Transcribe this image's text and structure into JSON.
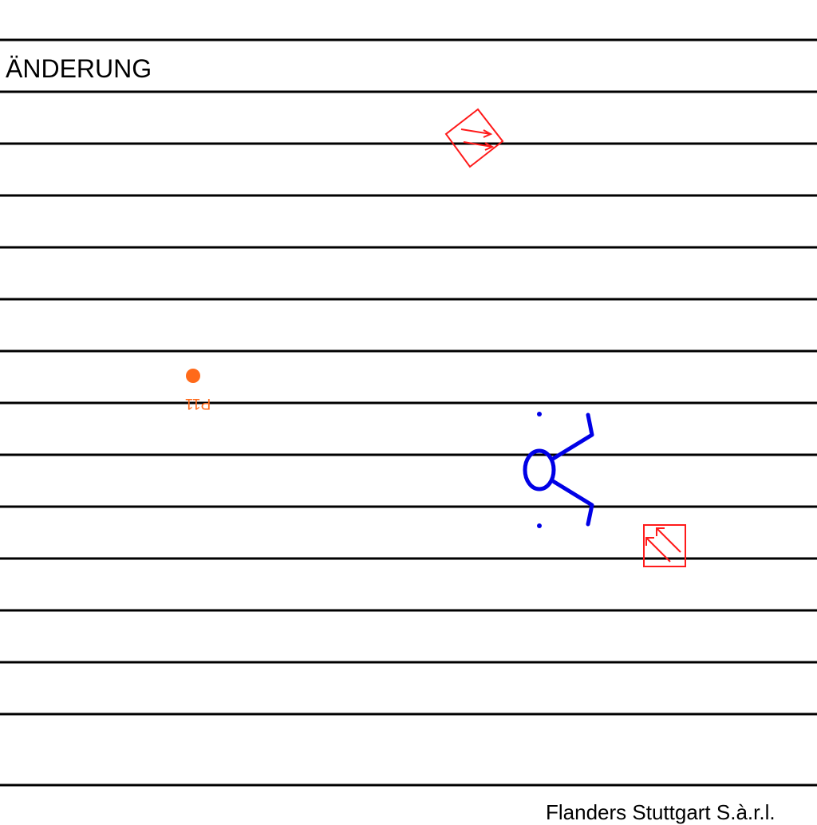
{
  "header": {
    "title": "ÄNDERUNG"
  },
  "markers": {
    "point_label": "P11"
  },
  "footer": {
    "company": "Flanders Stuttgart S.à.r.l."
  },
  "colors": {
    "grid_lines": "#000000",
    "sign_red": "#ff1a1a",
    "symbol_blue": "#0000e6",
    "point_orange": "#ff6a1a"
  },
  "icons": {
    "tilted_sign": "diamond-arrow-sign-icon",
    "square_sign": "square-arrow-sign-icon",
    "symbol": "blue-circle-symbol-icon",
    "point": "orange-point-marker-icon"
  }
}
